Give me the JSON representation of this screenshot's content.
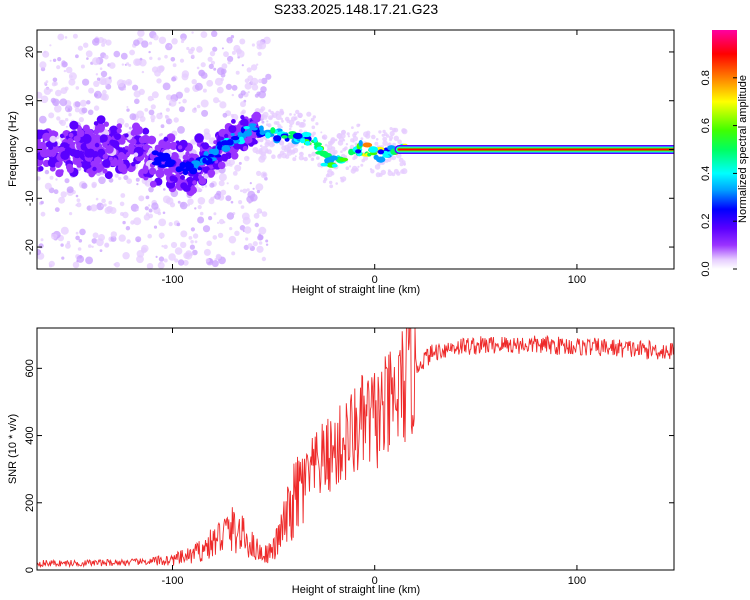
{
  "title": "S233.2025.148.17.21.G23",
  "chart_data": [
    {
      "type": "heatmap",
      "xlabel": "Height of straight line (km)",
      "ylabel": "Frequency (Hz)",
      "xlim": [
        -167,
        148
      ],
      "ylim": [
        -24.5,
        24.5
      ],
      "x_ticks": [
        -100,
        0,
        100
      ],
      "y_ticks": [
        -20,
        -10,
        0,
        10,
        20
      ],
      "colorbar": {
        "label": "Normalized spectral amplitude",
        "range": [
          0.0,
          1.0
        ],
        "ticks": [
          0.0,
          0.2,
          0.4,
          0.6,
          0.8
        ],
        "colors": [
          "#ffffff",
          "#e6ccff",
          "#9a33ff",
          "#5a00ff",
          "#0000ff",
          "#00a0ff",
          "#00ffff",
          "#00ff60",
          "#40ff00",
          "#ffff00",
          "#ff8000",
          "#ff0000",
          "#ff00a0"
        ]
      },
      "ridge": {
        "x": [
          -160,
          -140,
          -120,
          -100,
          -90,
          -80,
          -70,
          -60,
          -50,
          -40,
          -30,
          -25,
          -20,
          -15,
          -10,
          -5,
          0,
          5,
          10,
          15,
          50,
          100,
          148
        ],
        "y": [
          0,
          0.5,
          0,
          -3,
          -4,
          -1,
          2,
          4,
          3,
          3,
          2,
          -2,
          -3,
          -1,
          0.5,
          0,
          -1,
          -1,
          0,
          0,
          0,
          0,
          0
        ]
      }
    },
    {
      "type": "line",
      "xlabel": "Height of straight line (km)",
      "ylabel": "SNR (10 * v/v)",
      "xlim": [
        -167,
        148
      ],
      "ylim": [
        0,
        720
      ],
      "x_ticks": [
        -100,
        0,
        100
      ],
      "y_ticks": [
        0,
        200,
        400,
        600
      ],
      "color": "#ee2a2a",
      "x": [
        -167,
        -150,
        -130,
        -110,
        -100,
        -90,
        -80,
        -75,
        -70,
        -65,
        -60,
        -55,
        -50,
        -45,
        -40,
        -35,
        -30,
        -25,
        -20,
        -15,
        -10,
        -5,
        0,
        5,
        10,
        15,
        20,
        25,
        30,
        40,
        60,
        80,
        100,
        120,
        148
      ],
      "y": [
        20,
        20,
        22,
        25,
        30,
        45,
        80,
        110,
        120,
        100,
        70,
        45,
        60,
        130,
        200,
        260,
        300,
        330,
        350,
        380,
        410,
        440,
        450,
        470,
        500,
        560,
        600,
        630,
        650,
        665,
        670,
        670,
        665,
        660,
        650
      ]
    }
  ]
}
